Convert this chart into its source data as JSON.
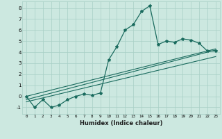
{
  "title": "",
  "xlabel": "Humidex (Indice chaleur)",
  "ylabel": "",
  "bg_color": "#cce8e0",
  "line_color": "#1a6b5e",
  "grid_color": "#a8cfc5",
  "xlim": [
    -0.5,
    23.5
  ],
  "ylim": [
    -1.6,
    8.6
  ],
  "xticks": [
    0,
    1,
    2,
    3,
    4,
    5,
    6,
    7,
    8,
    9,
    10,
    11,
    12,
    13,
    14,
    15,
    16,
    17,
    18,
    19,
    20,
    21,
    22,
    23
  ],
  "yticks": [
    -1,
    0,
    1,
    2,
    3,
    4,
    5,
    6,
    7,
    8
  ],
  "main_x": [
    0,
    1,
    2,
    3,
    4,
    5,
    6,
    7,
    8,
    9,
    10,
    11,
    12,
    13,
    14,
    15,
    16,
    17,
    18,
    19,
    20,
    21,
    22,
    23
  ],
  "main_y": [
    0.0,
    -1.0,
    -0.3,
    -1.0,
    -0.8,
    -0.3,
    0.0,
    0.2,
    0.1,
    0.3,
    3.3,
    4.5,
    6.0,
    6.5,
    7.7,
    8.2,
    4.7,
    5.0,
    4.9,
    5.2,
    5.1,
    4.8,
    4.1,
    4.1
  ],
  "line1_x": [
    0,
    23
  ],
  "line1_y": [
    -0.3,
    4.2
  ],
  "line2_x": [
    0,
    23
  ],
  "line2_y": [
    -0.5,
    3.6
  ],
  "line3_x": [
    0,
    23
  ],
  "line3_y": [
    0.0,
    4.3
  ]
}
